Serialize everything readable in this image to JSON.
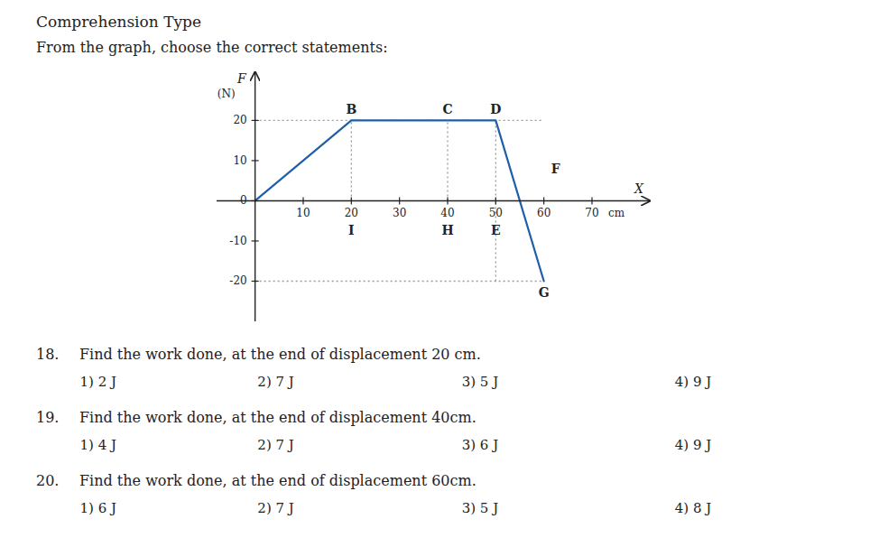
{
  "chart_data": {
    "type": "line",
    "title": "Comprehension Type",
    "subtitle": "From the graph, choose the correct statements:",
    "x": [
      0,
      20,
      50,
      60
    ],
    "values": [
      0,
      20,
      20,
      -20
    ],
    "xlim": [
      -8,
      82
    ],
    "ylim": [
      -30,
      32
    ],
    "xticks": [
      10,
      20,
      30,
      40,
      50,
      60,
      70
    ],
    "yticks": [
      -20,
      -10,
      0,
      10,
      20
    ],
    "xlabel": "X",
    "xunit": "cm",
    "ylabel": "F",
    "yunit": "(N)",
    "h_lines": [
      {
        "y": 20,
        "x0": 0,
        "x1": 60
      },
      {
        "y": -20,
        "x0": 0,
        "x1": 60
      }
    ],
    "v_lines": [
      {
        "x": 20,
        "y0": 0,
        "y1": 20
      },
      {
        "x": 40,
        "y0": 0,
        "y1": 20
      },
      {
        "x": 50,
        "y0": -20,
        "y1": 20
      }
    ],
    "annotations": [
      {
        "text": "B",
        "x": 20,
        "y": 20,
        "position": "above"
      },
      {
        "text": "C",
        "x": 40,
        "y": 20,
        "position": "above"
      },
      {
        "text": "D",
        "x": 50,
        "y": 20,
        "position": "above"
      },
      {
        "text": "F",
        "x": 60,
        "y": 8,
        "position": "right"
      },
      {
        "text": "G",
        "x": 60,
        "y": -20,
        "position": "below"
      },
      {
        "text": "I",
        "x": 20,
        "y": 0,
        "position": "below"
      },
      {
        "text": "H",
        "x": 40,
        "y": 0,
        "position": "below"
      },
      {
        "text": "E",
        "x": 50,
        "y": 0,
        "position": "below"
      }
    ],
    "questions": [
      {
        "number": "18.",
        "text": "Find the work done, at the end of displacement 20 cm.",
        "options": [
          "1) 2 J",
          "2) 7 J",
          "3) 5 J",
          "4) 9 J"
        ]
      },
      {
        "number": "19.",
        "text": "Find the work done, at the end of displacement 40cm.",
        "options": [
          "1) 4 J",
          "2) 7 J",
          "3) 6 J",
          "4) 9 J"
        ]
      },
      {
        "number": "20.",
        "text": "Find the work done, at the end of displacement 60cm.",
        "options": [
          "1) 6 J",
          "2) 7 J",
          "3) 5 J",
          "4) 8 J"
        ]
      }
    ]
  }
}
